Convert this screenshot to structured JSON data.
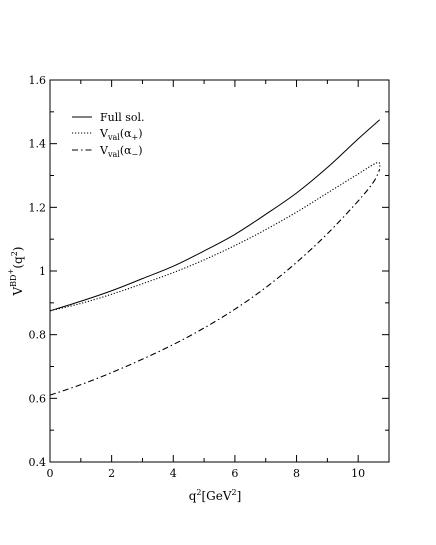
{
  "chart_data": {
    "type": "line",
    "xlabel": {
      "base": "q",
      "sup": "2",
      "units": "[GeV",
      "units_sup": "2",
      "units_close": "]"
    },
    "ylabel": {
      "base": "V",
      "sup": "BD",
      "sup2": "+",
      "arg_open": "(q",
      "arg_sup": "2",
      "arg_close": ")"
    },
    "xlim": [
      0,
      11
    ],
    "ylim": [
      0.4,
      1.6
    ],
    "xticks": [
      0,
      2,
      4,
      6,
      8,
      10
    ],
    "xtick_labels": [
      "0",
      "2",
      "4",
      "6",
      "8",
      "10"
    ],
    "yticks": [
      0.4,
      0.6,
      0.8,
      1.0,
      1.2,
      1.4,
      1.6
    ],
    "ytick_labels": [
      "0.4",
      "0.6",
      "0.8",
      "1",
      "1.2",
      "1.4",
      "1.6"
    ],
    "grid": false,
    "legend_position": "top-left",
    "series": [
      {
        "name": "Full sol.",
        "legend": {
          "base": "Full sol."
        },
        "style": "solid",
        "color": "#000000",
        "x": [
          0,
          1,
          2,
          3,
          4,
          5,
          6,
          7,
          8,
          9,
          10,
          10.7
        ],
        "y": [
          0.875,
          0.905,
          0.938,
          0.976,
          1.015,
          1.063,
          1.115,
          1.178,
          1.245,
          1.325,
          1.415,
          1.475
        ]
      },
      {
        "name": "V_val(α+)",
        "legend": {
          "base": "V",
          "sub": "val",
          "arg": "(α",
          "arg_sub": "+",
          "arg_close": ")"
        },
        "style": "dotted",
        "color": "#000000",
        "x": [
          0,
          1,
          2,
          3,
          4,
          5,
          6,
          7,
          8,
          9,
          10,
          10.5,
          10.68,
          10.7
        ],
        "y": [
          0.875,
          0.898,
          0.927,
          0.96,
          0.995,
          1.035,
          1.08,
          1.13,
          1.185,
          1.245,
          1.305,
          1.335,
          1.34,
          1.325
        ]
      },
      {
        "name": "V_val(α-)",
        "legend": {
          "base": "V",
          "sub": "val",
          "arg": "(α",
          "arg_sub": "−",
          "arg_close": ")"
        },
        "style": "dashdot",
        "color": "#000000",
        "x": [
          0,
          1,
          2,
          3,
          4,
          5,
          6,
          7,
          8,
          9,
          10,
          10.5,
          10.7
        ],
        "y": [
          0.61,
          0.643,
          0.681,
          0.723,
          0.769,
          0.821,
          0.88,
          0.948,
          1.027,
          1.117,
          1.22,
          1.28,
          1.32
        ]
      }
    ]
  }
}
